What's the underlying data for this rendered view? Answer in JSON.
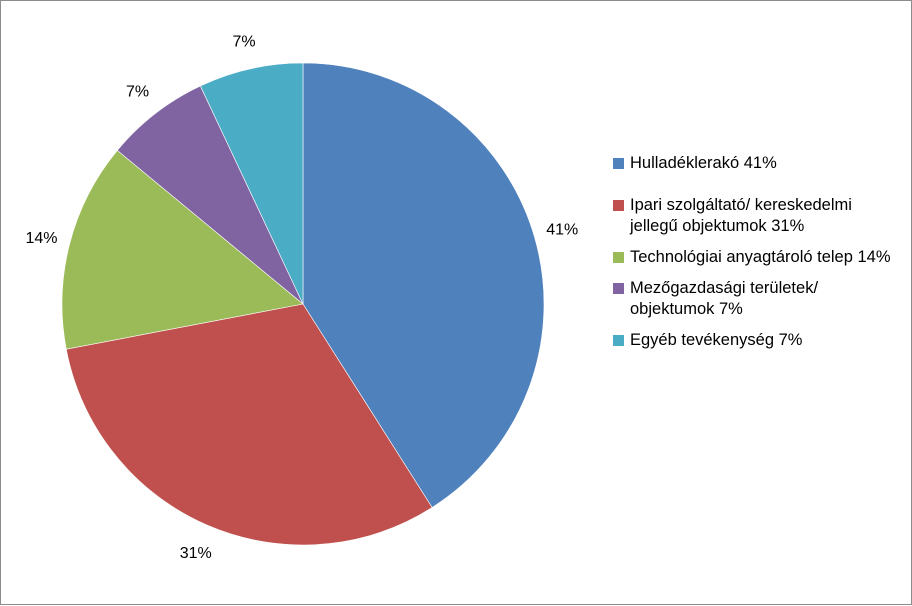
{
  "chart_data": {
    "type": "pie",
    "slices": [
      {
        "label": "Hulladéklerakó 41%",
        "value": 41,
        "data_label": "41%",
        "color": "#4f81bd"
      },
      {
        "label": "Ipari szolgáltató/ kereskedelmi jellegű objektumok 31%",
        "value": 31,
        "data_label": "31%",
        "color": "#c0504d"
      },
      {
        "label": "Technológiai anyagtároló telep 14%",
        "value": 14,
        "data_label": "14%",
        "color": "#9bbb59"
      },
      {
        "label": "Mezőgazdasági területek/ objektumok 7%",
        "value": 7,
        "data_label": "7%",
        "color": "#8064a2"
      },
      {
        "label": "Egyéb tevékenység 7%",
        "value": 7,
        "data_label": "7%",
        "color": "#4bacc6"
      }
    ],
    "start_angle": "12 o'clock",
    "direction": "clockwise",
    "legend_position": "right"
  }
}
